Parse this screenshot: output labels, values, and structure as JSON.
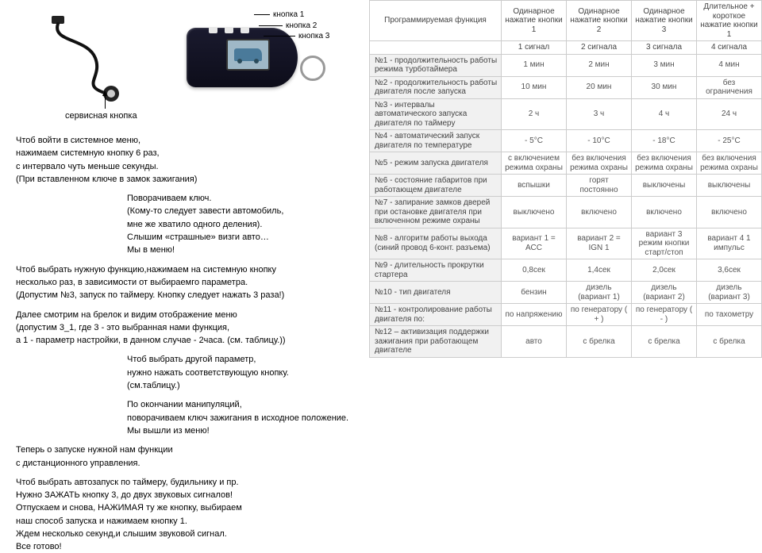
{
  "diagram": {
    "btn1": "кнопка 1",
    "btn2": "кнопка 2",
    "btn3": "кнопка 3",
    "service": "сервисная кнопка"
  },
  "instr": {
    "b1l1": "Чтоб войти в системное меню,",
    "b1l2": "нажимаем системную кнопку 6 раз,",
    "b1l3": "с интервало чуть меньше секунды.",
    "b1l4": "(При вставленном ключе в замок зажигания)",
    "b2l1": "Поворачиваем ключ.",
    "b2l2": "(Кому-то следует завести автомобиль,",
    "b2l3": "мне же хватило одного деления).",
    "b2l4": "Слышим «страшные» визги авто…",
    "b2l5": "Мы в меню!",
    "b3l1": "Чтоб выбрать нужную функцию,нажимаем на системную кнопку",
    "b3l2": "несколько раз, в зависимости от выбираемго параметра.",
    "b3l3": "(Допустим №3, запуск по таймеру. Кнопку следует нажать 3 раза!)",
    "b4l1": "Далее смотрим на брелок и видим отображение меню",
    "b4l2": "(допустим 3_1, где 3 - это выбранная нами функция,",
    "b4l3": "а 1 - параметр нaстройки, в данном случае - 2часа. (см. таблицу.))",
    "b5l1": "Чтоб выбрать другой параметр,",
    "b5l2": "нужно нажать соответствующую кнопку.",
    "b5l3": "(см.таблицу.)",
    "b6l1": "По окончании манипуляций,",
    "b6l2": "поворачиваем ключ зажигания в исходное положение.",
    "b6l3": "Мы вышли из меню!",
    "b7l1": "Теперь о запуске нужной нам функции",
    "b7l2": "с дистанционного управления.",
    "b8l1": "Чтоб выбрать автозапуск по таймеру, будильнику и пр.",
    "b8l2": "Нужно ЗАЖАТЬ кнопку 3, до двух звуковых сигналов!",
    "b8l3": "Отпускаем и снова, НАЖИМАЯ ту же кнопку, выбираем",
    "b8l4": "наш способ запуска и нажимаем кнопку 1.",
    "b8l5": "Ждем несколько секунд,и слышим звуковой сигнал.",
    "b8l6": "Все готово!"
  },
  "table": {
    "head_func": "Программируемая функция",
    "head1": "Одинарное нажатие кнопки 1",
    "head2": "Одинарное нажатие кнопки 2",
    "head3": "Одинарное нажатие кнопки 3",
    "head4": "Длительное + короткое нажатие кнопки 1",
    "sig1": "1 сигнал",
    "sig2": "2 сигнала",
    "sig3": "3 сигнала",
    "sig4": "4 сигнала",
    "rows": [
      {
        "f": "№1 - продолжительность работы режима турботаймера",
        "v": [
          "1 мин",
          "2 мин",
          "3 мин",
          "4 мин"
        ]
      },
      {
        "f": "№2 - продолжительность работы двигателя после запуска",
        "v": [
          "10 мин",
          "20 мин",
          "30 мин",
          "без ограничения"
        ]
      },
      {
        "f": "№3 - интервалы автоматического запуска двигателя по таймеру",
        "v": [
          "2 ч",
          "3 ч",
          "4 ч",
          "24 ч"
        ]
      },
      {
        "f": "№4 - автоматический запуск двигателя по температуре",
        "v": [
          "- 5°C",
          "- 10°C",
          "- 18°C",
          "- 25°C"
        ]
      },
      {
        "f": "№5 - режим запуска двигателя",
        "v": [
          "с включением режима охраны",
          "без включения режима охраны",
          "без включения режима охраны",
          "без включения режима охраны"
        ]
      },
      {
        "f": "№6 - состояние габаритов при работающем двигателе",
        "v": [
          "вспышки",
          "горят постоянно",
          "выключены",
          "выключены"
        ]
      },
      {
        "f": "№7 - запирание замков дверей при остановке двигателя при включенном режиме охраны",
        "v": [
          "выключено",
          "включено",
          "включено",
          "включено"
        ]
      },
      {
        "f": "№8 - алгоритм работы выхода (синий провод 6-конт. разъема)",
        "v": [
          "вариант 1 = АСС",
          "вариант 2 = IGN 1",
          "вариант 3 режим кнопки старт/стоп",
          "вариант 4 1 импульс"
        ]
      },
      {
        "f": "№9 - длительность прокрутки стартера",
        "v": [
          "0,8сек",
          "1,4сек",
          "2,0сек",
          "3,6сек"
        ]
      },
      {
        "f": "№10 - тип двигателя",
        "v": [
          "бензин",
          "дизель (вариант 1)",
          "дизель (вариант 2)",
          "дизель (вариант 3)"
        ]
      },
      {
        "f": "№11 - контролирование работы двигателя по:",
        "v": [
          "по напряжению",
          "по генератору ( + )",
          "по генератору ( - )",
          "по тахометру"
        ]
      },
      {
        "f": "№12 – активизация поддержки зажигания при работающем двигателе",
        "v": [
          "авто",
          "с брелка",
          "с брелка",
          "с брелка"
        ]
      }
    ]
  },
  "colors": {
    "border": "#cccccc",
    "rowlabel_bg": "#f1f1f1",
    "text": "#555555"
  }
}
